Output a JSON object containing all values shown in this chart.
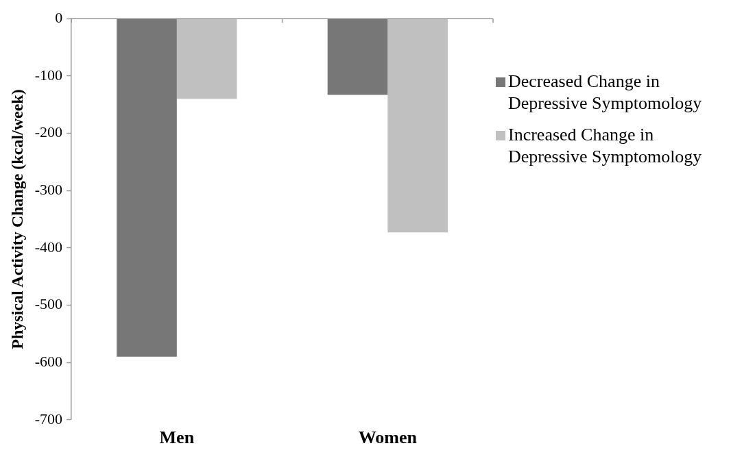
{
  "chart_data": {
    "type": "bar",
    "ylabel": "Physical Activity Change (kcal/week)",
    "categories": [
      "Men",
      "Women"
    ],
    "series": [
      {
        "name": "Decreased Change in Depressive Symptomology",
        "color": "#777777",
        "values": [
          -590,
          -133
        ]
      },
      {
        "name": "Increased Change in Depressive Symptomology",
        "color": "#c0c0c0",
        "values": [
          -140,
          -373
        ]
      }
    ],
    "ylim": [
      -700,
      0
    ],
    "yticks": [
      -700,
      -600,
      -500,
      -400,
      -300,
      -200,
      -100,
      0
    ],
    "grid": false,
    "legend": "right"
  }
}
